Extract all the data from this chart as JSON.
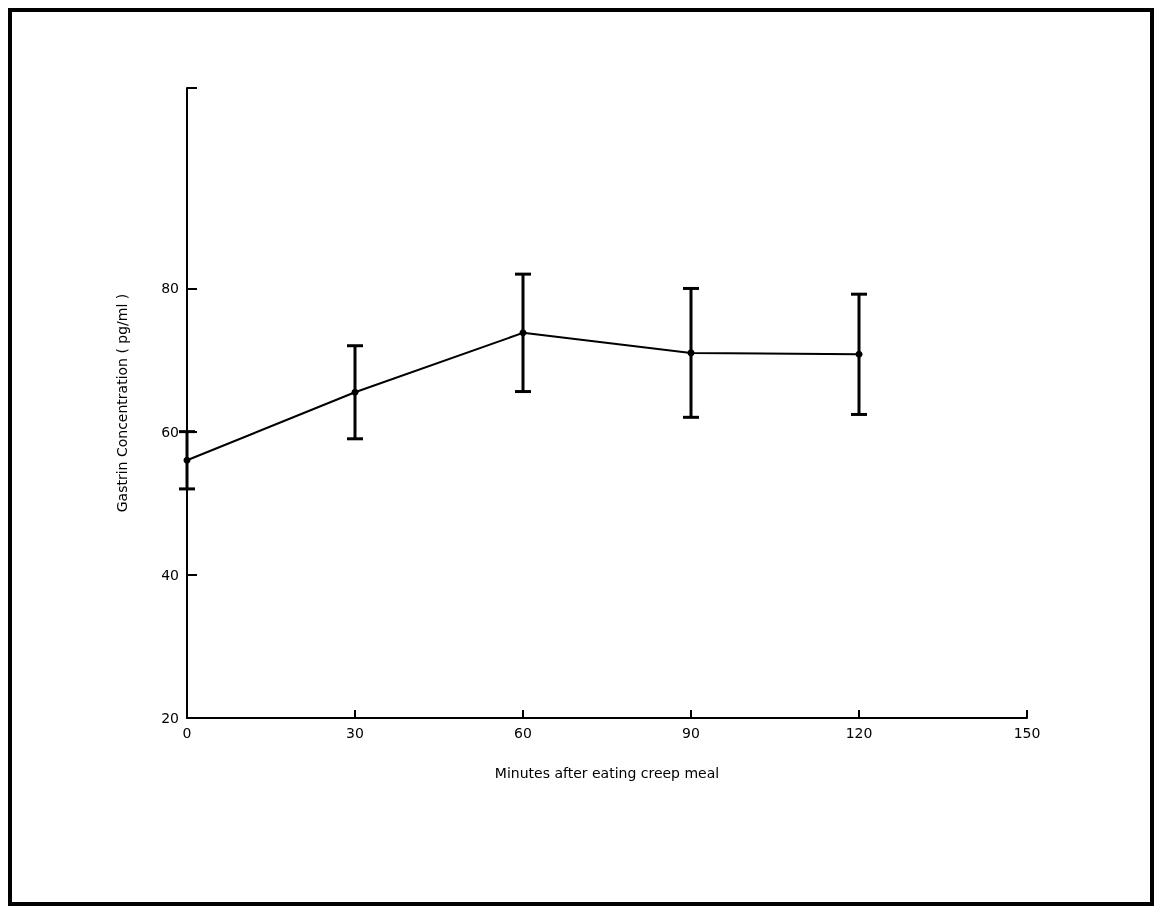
{
  "chart_data": {
    "type": "line",
    "xlabel": "Minutes after eating creep meal",
    "ylabel": "Gastrin Concentration ( pg/ml )",
    "x": [
      0,
      30,
      60,
      90,
      120
    ],
    "series": [
      {
        "color": "#000000",
        "values": [
          56,
          65.5,
          73.8,
          71,
          70.8
        ],
        "errors": [
          4,
          6.5,
          8.2,
          9,
          8.4
        ]
      }
    ],
    "xlim": [
      0,
      150
    ],
    "xticks": [
      0,
      30,
      60,
      90,
      120,
      150
    ],
    "ylim": [
      20,
      108
    ],
    "yticks": [
      20,
      40,
      60,
      80,
      {
        "value": 108,
        "label": null
      }
    ],
    "grid": false,
    "marker": "circle",
    "line_style": "solid"
  }
}
